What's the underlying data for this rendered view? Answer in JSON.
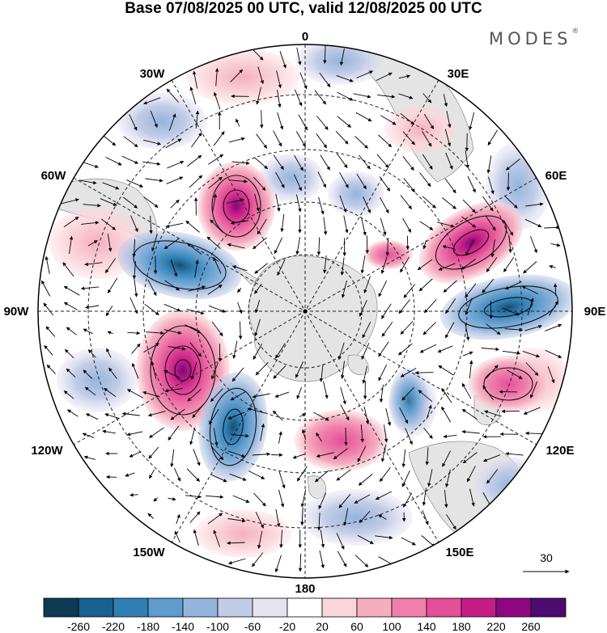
{
  "header": {
    "title": "Base 07/08/2025 00 UTC, valid 12/08/2025 00 UTC",
    "brand": "MODES",
    "brand_mark": "®"
  },
  "map": {
    "projection": "south polar stereographic",
    "longitude_labels": {
      "top": "0",
      "top_right": "30E",
      "right_upper": "60E",
      "right": "90E",
      "right_lower": "120E",
      "bottom_right": "150E",
      "bottom": "180",
      "bottom_left": "150W",
      "left_lower": "120W",
      "left": "90W",
      "left_upper": "60W",
      "top_left": "30W"
    },
    "reference_vector": {
      "label": "30"
    },
    "colors": {
      "positive_peak": "#4a0a6e",
      "negative_peak": "#0d3a5c",
      "land": "#e4e4e4"
    }
  },
  "colorbar": {
    "ticks": [
      "-260",
      "-220",
      "-180",
      "-140",
      "-100",
      "-60",
      "-20",
      "20",
      "60",
      "100",
      "140",
      "180",
      "220",
      "260"
    ],
    "colors": [
      "#0e3a56",
      "#17608f",
      "#2f7fb4",
      "#5d9ccd",
      "#93b5dc",
      "#c3cce7",
      "#e6e2f0",
      "#ffffff",
      "#fad6dc",
      "#f5aec1",
      "#ee80aa",
      "#e54e99",
      "#c41c86",
      "#8f0780",
      "#4d0a6f"
    ]
  }
}
